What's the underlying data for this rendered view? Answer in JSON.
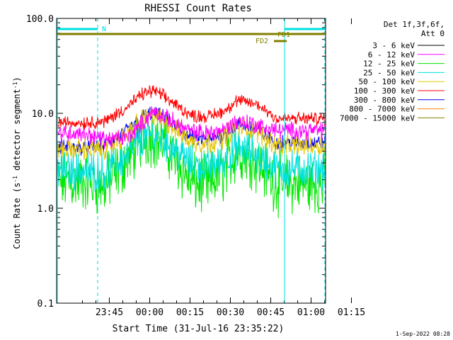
{
  "chart_data": {
    "type": "line",
    "title": "RHESSI Count Rates",
    "xlabel": "Start Time (31-Jul-16 23:35:22)",
    "ylabel": "Count Rate (s",
    "ylabel_sup1": "-1",
    "ylabel_mid": " detector segment",
    "ylabel_sup2": "-1",
    "ylabel_end": ")",
    "yscale": "log",
    "ylim": [
      0.1,
      100
    ],
    "xlim_minutes": [
      -10,
      90
    ],
    "x_unit": "minutes after 23:35:22",
    "x_ticks": [
      {
        "label": "23:45",
        "value": 9.6
      },
      {
        "label": "00:00",
        "value": 24.6
      },
      {
        "label": "00:15",
        "value": 39.6
      },
      {
        "label": "00:30",
        "value": 54.6
      },
      {
        "label": "00:45",
        "value": 69.6
      },
      {
        "label": "01:00",
        "value": 84.6
      },
      {
        "label": "01:15",
        "value": 99.6
      }
    ],
    "y_ticks": [
      {
        "label": "100.0",
        "value": 100
      },
      {
        "label": "10.0",
        "value": 10
      },
      {
        "label": "1.0",
        "value": 1
      },
      {
        "label": "0.1",
        "value": 0.1
      }
    ],
    "legend_title": [
      "Det 1f,3f,6f,",
      "Att 0"
    ],
    "legend_placement": "right",
    "series": [
      {
        "name": "3 - 6 keV",
        "color": "#000000",
        "shows": false
      },
      {
        "name": "6 - 12 keV",
        "color": "#ff00ff",
        "shows": true,
        "values": [
          [
            0,
            6.2
          ],
          [
            8,
            5.3
          ],
          [
            16,
            5.5
          ],
          [
            22,
            7.8
          ],
          [
            26,
            10.5
          ],
          [
            30,
            9.2
          ],
          [
            40,
            6.4
          ],
          [
            46,
            6.2
          ],
          [
            52,
            6.7
          ],
          [
            57,
            8.3
          ],
          [
            62,
            8.0
          ],
          [
            66,
            7.2
          ],
          [
            72,
            6.6
          ]
        ]
      },
      {
        "name": "12 - 25 keV",
        "color": "#00e600",
        "shows": true,
        "values": [
          [
            0,
            1.9
          ],
          [
            8,
            1.7
          ],
          [
            16,
            3.2
          ],
          [
            22,
            5.6
          ],
          [
            26,
            5.8
          ],
          [
            30,
            4.8
          ],
          [
            40,
            1.9
          ],
          [
            46,
            1.7
          ],
          [
            52,
            2.4
          ],
          [
            57,
            4.0
          ],
          [
            62,
            3.6
          ],
          [
            66,
            2.8
          ],
          [
            72,
            1.8
          ]
        ]
      },
      {
        "name": "25 - 50 keV",
        "color": "#00e0e0",
        "shows": true,
        "values": [
          [
            0,
            2.5
          ],
          [
            8,
            2.4
          ],
          [
            16,
            3.6
          ],
          [
            22,
            5.5
          ],
          [
            26,
            5.9
          ],
          [
            30,
            5.2
          ],
          [
            40,
            3.0
          ],
          [
            46,
            2.7
          ],
          [
            52,
            3.2
          ],
          [
            57,
            4.2
          ],
          [
            62,
            4.0
          ],
          [
            66,
            3.4
          ],
          [
            72,
            2.6
          ]
        ]
      },
      {
        "name": "50 - 100 keV",
        "color": "#e6c800",
        "shows": true,
        "values": [
          [
            0,
            4.2
          ],
          [
            8,
            4.2
          ],
          [
            16,
            6.0
          ],
          [
            22,
            8.6
          ],
          [
            26,
            9.4
          ],
          [
            30,
            8.4
          ],
          [
            40,
            5.0
          ],
          [
            46,
            4.8
          ],
          [
            52,
            5.6
          ],
          [
            57,
            7.2
          ],
          [
            62,
            7.0
          ],
          [
            66,
            6.0
          ],
          [
            72,
            4.6
          ]
        ]
      },
      {
        "name": "100 - 300 keV",
        "color": "#ff0000",
        "shows": true,
        "values": [
          [
            0,
            8.0
          ],
          [
            8,
            8.2
          ],
          [
            16,
            11.5
          ],
          [
            22,
            16.0
          ],
          [
            26,
            17.5
          ],
          [
            30,
            15.0
          ],
          [
            40,
            9.5
          ],
          [
            46,
            9.2
          ],
          [
            52,
            10.5
          ],
          [
            57,
            13.5
          ],
          [
            62,
            13.0
          ],
          [
            66,
            11.8
          ],
          [
            72,
            8.8
          ]
        ]
      },
      {
        "name": "300 - 800 keV",
        "color": "#0000ff",
        "shows": true,
        "values": [
          [
            0,
            4.4
          ],
          [
            8,
            4.5
          ],
          [
            16,
            6.5
          ],
          [
            22,
            9.3
          ],
          [
            26,
            10.0
          ],
          [
            30,
            9.0
          ],
          [
            40,
            5.5
          ],
          [
            46,
            5.2
          ],
          [
            52,
            6.0
          ],
          [
            57,
            7.5
          ],
          [
            62,
            7.3
          ],
          [
            66,
            6.3
          ],
          [
            72,
            4.9
          ]
        ]
      },
      {
        "name": "800 - 7000 keV",
        "color": "#ff8000",
        "shows": true,
        "values": [
          [
            0,
            3.0
          ],
          [
            8,
            3.1
          ],
          [
            16,
            4.3
          ],
          [
            22,
            6.1
          ],
          [
            26,
            6.6
          ],
          [
            30,
            5.8
          ],
          [
            40,
            3.4
          ],
          [
            46,
            3.3
          ],
          [
            52,
            3.8
          ],
          [
            57,
            4.9
          ],
          [
            62,
            4.7
          ],
          [
            66,
            4.0
          ],
          [
            72,
            3.1
          ]
        ]
      },
      {
        "name": "7000 - 15000 keV",
        "color": "#808000",
        "shows": false
      }
    ],
    "attenuator_bars": [
      {
        "label": "N",
        "color": "#00e0e0"
      },
      {
        "label": "FD1",
        "color": "#808000"
      },
      {
        "label": "FD2",
        "color": "#808000"
      }
    ],
    "footer_timestamp": "1-Sep-2022 08:28"
  }
}
